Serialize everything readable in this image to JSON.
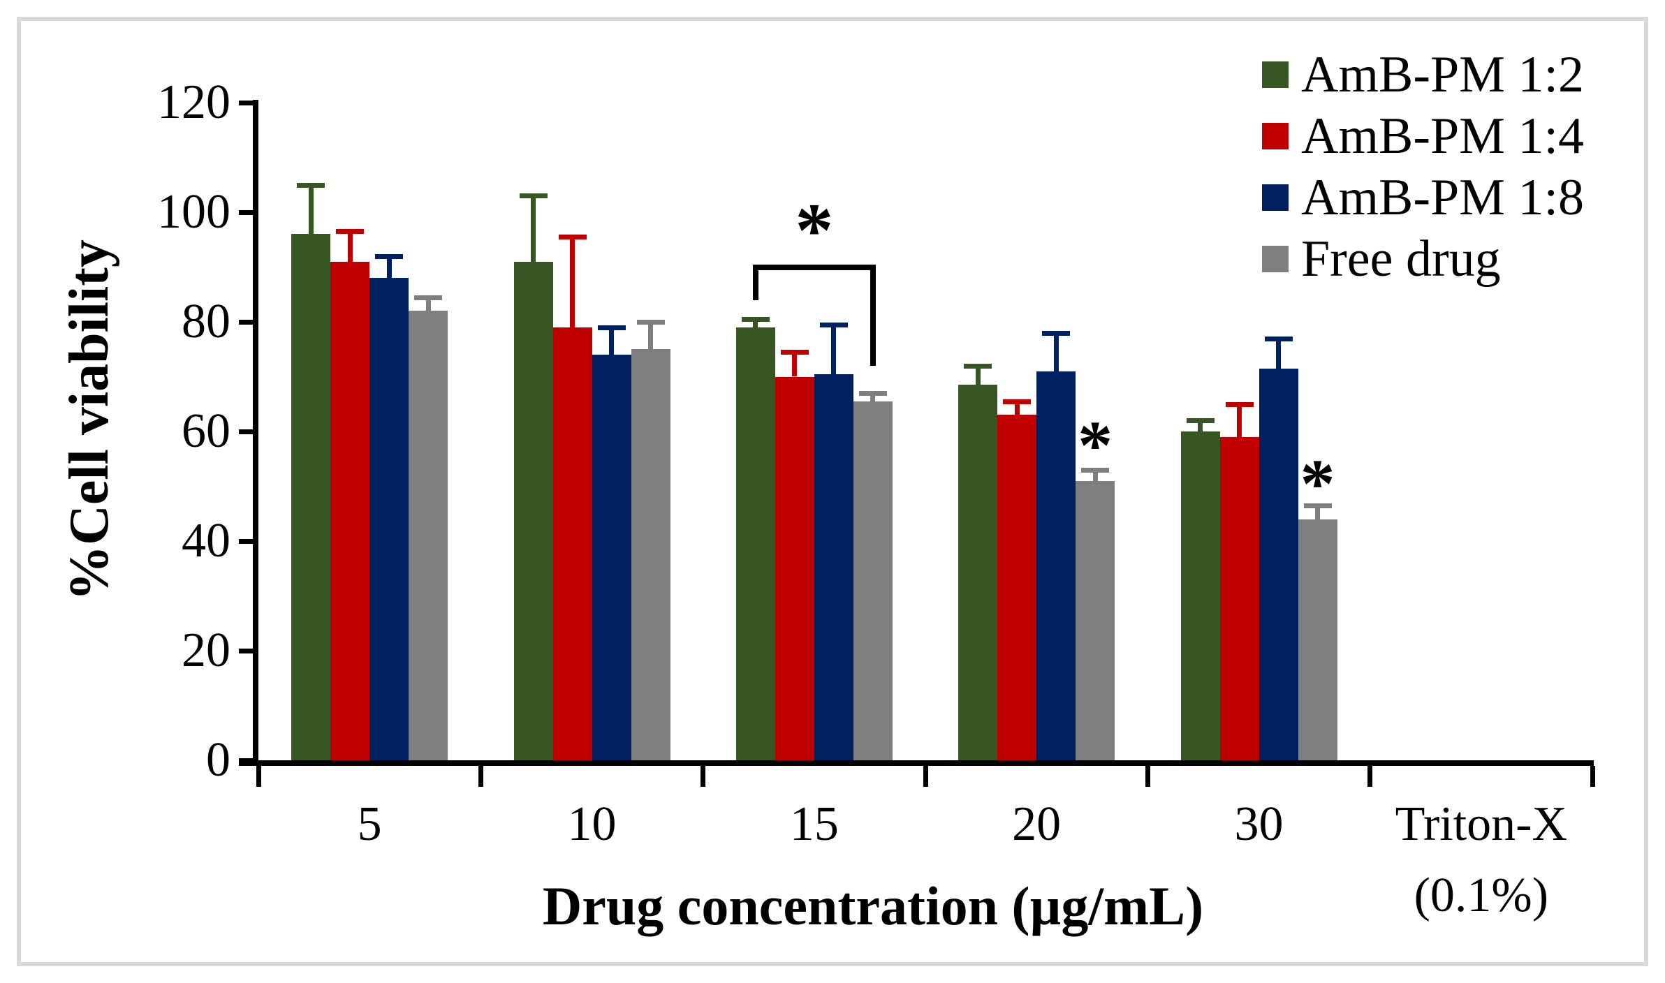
{
  "figure": {
    "background_color": "#ffffff",
    "frame_color": "#d9d9d9"
  },
  "chart_data": {
    "type": "bar",
    "title": "",
    "xlabel": "Drug concentration (µg/mL)",
    "ylabel": "%Cell viability",
    "ylim": [
      0,
      120
    ],
    "ytick_step": 20,
    "grid": false,
    "legend_position": "top-right",
    "error_bars": "upper",
    "categories": [
      "5",
      "10",
      "15",
      "20",
      "30",
      "Triton-X (0.1%)"
    ],
    "series": [
      {
        "name": "AmB-PM 1:2",
        "color": "#375623",
        "values": [
          96,
          91,
          79,
          68.5,
          60,
          0
        ],
        "errors": [
          9,
          12,
          1.5,
          3.5,
          2,
          0
        ]
      },
      {
        "name": "AmB-PM 1:4",
        "color": "#c00000",
        "values": [
          91,
          79,
          70,
          63,
          59,
          0
        ],
        "errors": [
          5.5,
          16.5,
          4.5,
          2.5,
          6,
          0
        ]
      },
      {
        "name": "AmB-PM 1:8",
        "color": "#002060",
        "values": [
          88,
          74,
          70.5,
          71,
          71.5,
          0
        ],
        "errors": [
          4,
          5,
          9,
          7,
          5.5,
          0
        ]
      },
      {
        "name": "Free drug",
        "color": "#7f7f7f",
        "values": [
          82,
          75,
          65.5,
          51,
          44,
          0
        ],
        "errors": [
          2.5,
          5,
          1.5,
          2,
          2.5,
          0
        ]
      }
    ],
    "annotations": [
      {
        "type": "bracket",
        "category": "15",
        "from_series": "AmB-PM 1:2",
        "to_series": "Free drug",
        "label": "*",
        "top_value": 90.5,
        "left_drop_value": 84,
        "right_drop_value": 72,
        "label_value": 99
      },
      {
        "type": "star",
        "category": "20",
        "series": "Free drug",
        "label": "*",
        "value": 59.5
      },
      {
        "type": "star",
        "category": "30",
        "series": "Free drug",
        "label": "*",
        "value": 52.5
      }
    ]
  }
}
